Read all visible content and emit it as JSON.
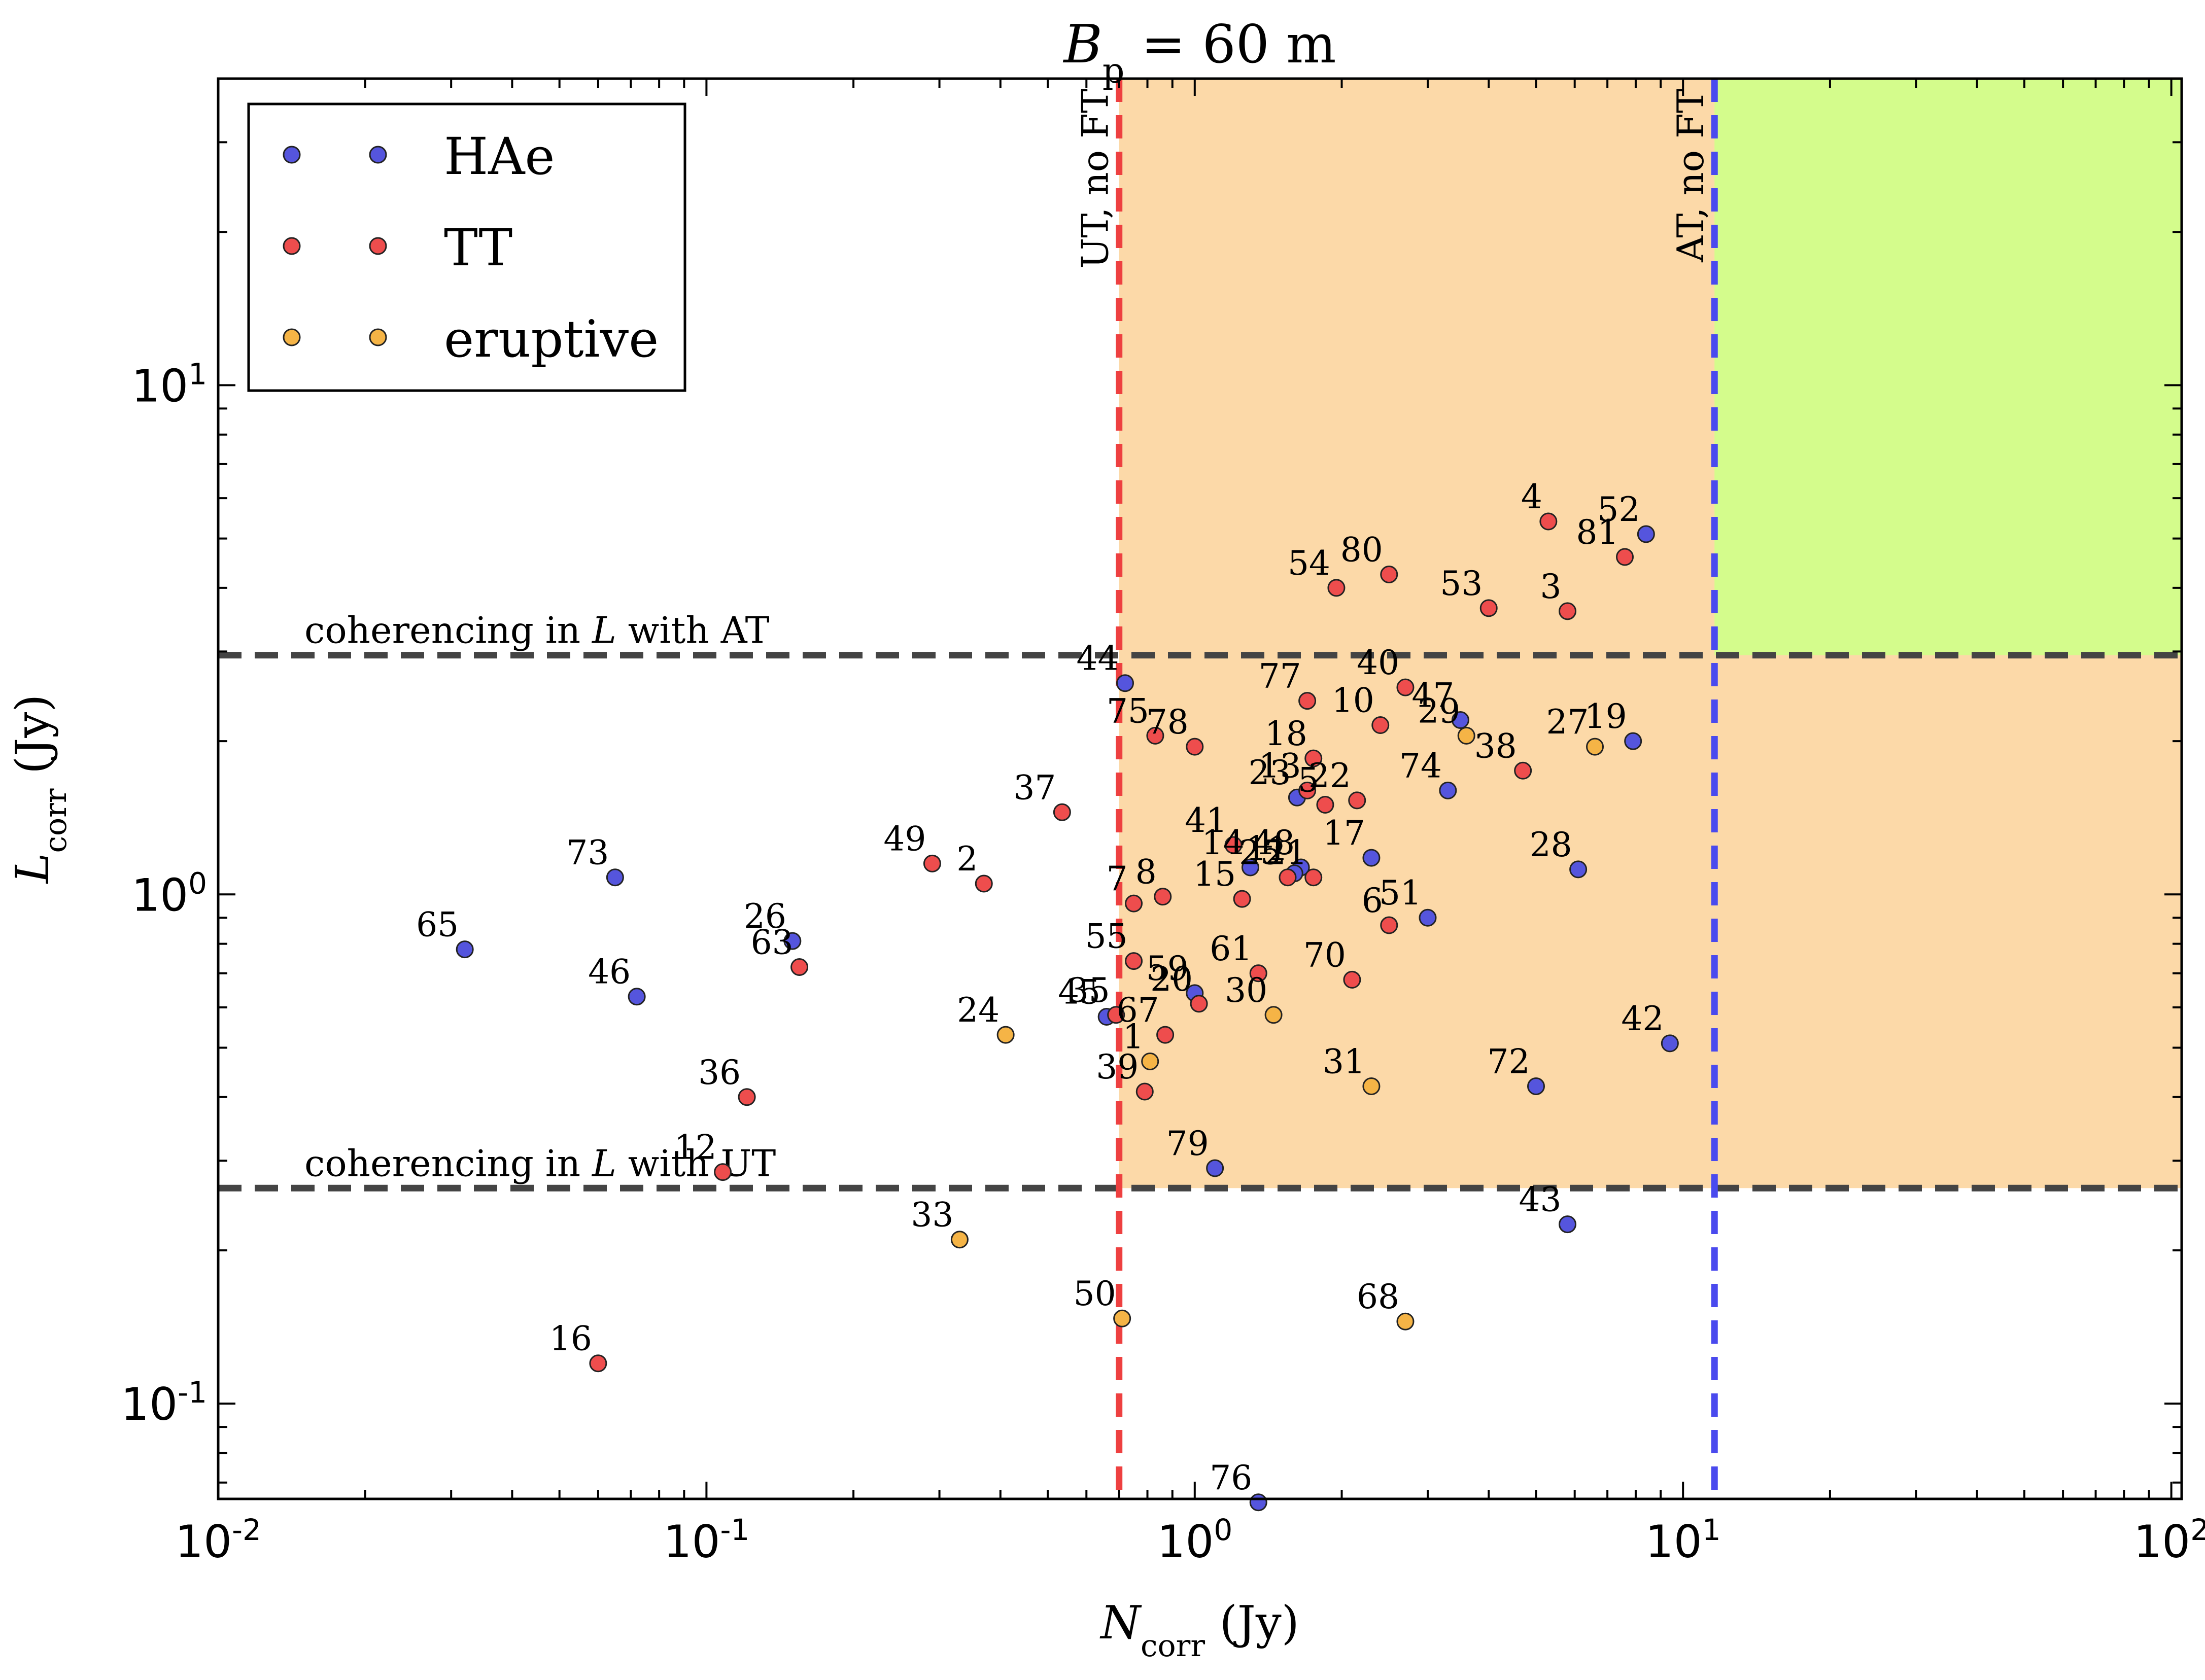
{
  "chart_data": {
    "type": "scatter",
    "title": "B_p = 60 m",
    "title_parts": {
      "base": "B",
      "sub": "p",
      "rest": " = 60 m"
    },
    "xlabel": "N_corr (Jy)",
    "xlabel_parts": {
      "base": "N",
      "sub": "corr",
      "rest": " (Jy)"
    },
    "ylabel": "L_corr (Jy)",
    "ylabel_parts": {
      "base": "L",
      "sub": "corr",
      "rest": " (Jy)"
    },
    "x_scale": "log",
    "y_scale": "log",
    "xlim": [
      0.01,
      105
    ],
    "ylim": [
      0.065,
      40
    ],
    "grid": false,
    "x_ticks": [
      {
        "value": 0.01,
        "base": "10",
        "exp": "-2"
      },
      {
        "value": 0.1,
        "base": "10",
        "exp": "-1"
      },
      {
        "value": 1,
        "base": "10",
        "exp": "0"
      },
      {
        "value": 10,
        "base": "10",
        "exp": "1"
      },
      {
        "value": 100,
        "base": "10",
        "exp": "2"
      }
    ],
    "y_ticks": [
      {
        "value": 0.1,
        "base": "10",
        "exp": "-1"
      },
      {
        "value": 1,
        "base": "10",
        "exp": "0"
      },
      {
        "value": 10,
        "base": "10",
        "exp": "1"
      }
    ],
    "legend": {
      "placement": "top-left",
      "entries": [
        {
          "label": "HAe",
          "color": "#5555dd"
        },
        {
          "label": "TT",
          "color": "#ee4d4d"
        },
        {
          "label": "eruptive",
          "color": "#f5b446"
        }
      ]
    },
    "colors": {
      "HAe": "#5555dd",
      "TT": "#ee4d4d",
      "eruptive": "#f5b446",
      "orange_region": "#fcd9a8",
      "green_region": "#d4fc8c",
      "ut_line": "#ee4040",
      "at_line": "#4a4aee",
      "coherencing_line": "#444444"
    },
    "thresholds": {
      "ut_no_ft": {
        "x": 0.7,
        "label": "UT, no FT"
      },
      "at_no_ft": {
        "x": 11.6,
        "label": "AT, no FT"
      },
      "coherencing_at": {
        "y": 2.95,
        "label_pre": "coherencing in ",
        "label_var": "L",
        "label_post": " with AT"
      },
      "coherencing_ut": {
        "y": 0.265,
        "label_pre": "coherencing in ",
        "label_var": "L",
        "label_post": " with UT"
      }
    },
    "series": [
      {
        "name": "HAe",
        "points": [
          {
            "id": "65",
            "x": 0.032,
            "y": 0.78
          },
          {
            "id": "73",
            "x": 0.065,
            "y": 1.08
          },
          {
            "id": "46",
            "x": 0.072,
            "y": 0.63
          },
          {
            "id": "26",
            "x": 0.15,
            "y": 0.81
          },
          {
            "id": "45",
            "x": 0.66,
            "y": 0.575
          },
          {
            "id": "44",
            "x": 0.72,
            "y": 2.6
          },
          {
            "id": "59",
            "x": 1.0,
            "y": 0.64
          },
          {
            "id": "79",
            "x": 1.1,
            "y": 0.29
          },
          {
            "id": "76",
            "x": 1.35,
            "y": 0.064
          },
          {
            "id": "14",
            "x": 1.3,
            "y": 1.13
          },
          {
            "id": "23",
            "x": 1.62,
            "y": 1.55
          },
          {
            "id": "48",
            "x": 1.65,
            "y": 1.13
          },
          {
            "id": "11",
            "x": 1.6,
            "y": 1.1
          },
          {
            "id": "17",
            "x": 2.3,
            "y": 1.18
          },
          {
            "id": "51",
            "x": 3.0,
            "y": 0.9
          },
          {
            "id": "74",
            "x": 3.3,
            "y": 1.6
          },
          {
            "id": "47",
            "x": 3.5,
            "y": 2.2
          },
          {
            "id": "72",
            "x": 5.0,
            "y": 0.42
          },
          {
            "id": "43",
            "x": 5.8,
            "y": 0.225
          },
          {
            "id": "28",
            "x": 6.1,
            "y": 1.12
          },
          {
            "id": "19",
            "x": 7.9,
            "y": 2.0
          },
          {
            "id": "52",
            "x": 8.4,
            "y": 5.1
          },
          {
            "id": "42",
            "x": 9.4,
            "y": 0.51
          }
        ]
      },
      {
        "name": "TT",
        "points": [
          {
            "id": "16",
            "x": 0.06,
            "y": 0.12
          },
          {
            "id": "12",
            "x": 0.108,
            "y": 0.285
          },
          {
            "id": "36",
            "x": 0.121,
            "y": 0.4
          },
          {
            "id": "63",
            "x": 0.155,
            "y": 0.72
          },
          {
            "id": "49",
            "x": 0.29,
            "y": 1.15
          },
          {
            "id": "2",
            "x": 0.37,
            "y": 1.05
          },
          {
            "id": "37",
            "x": 0.535,
            "y": 1.45
          },
          {
            "id": "35",
            "x": 0.69,
            "y": 0.58
          },
          {
            "id": "75",
            "x": 0.83,
            "y": 2.05
          },
          {
            "id": "67",
            "x": 0.87,
            "y": 0.53
          },
          {
            "id": "7",
            "x": 0.75,
            "y": 0.96
          },
          {
            "id": "55",
            "x": 0.75,
            "y": 0.74
          },
          {
            "id": "8",
            "x": 0.86,
            "y": 0.99
          },
          {
            "id": "39",
            "x": 0.79,
            "y": 0.41
          },
          {
            "id": "78",
            "x": 1.0,
            "y": 1.95
          },
          {
            "id": "20",
            "x": 1.02,
            "y": 0.61
          },
          {
            "id": "41",
            "x": 1.2,
            "y": 1.25
          },
          {
            "id": "15",
            "x": 1.25,
            "y": 0.98
          },
          {
            "id": "61",
            "x": 1.35,
            "y": 0.7
          },
          {
            "id": "25",
            "x": 1.55,
            "y": 1.08
          },
          {
            "id": "77",
            "x": 1.7,
            "y": 2.4
          },
          {
            "id": "18",
            "x": 1.75,
            "y": 1.85
          },
          {
            "id": "13",
            "x": 1.7,
            "y": 1.6
          },
          {
            "id": "22",
            "x": 2.15,
            "y": 1.53
          },
          {
            "id": "21",
            "x": 1.75,
            "y": 1.08
          },
          {
            "id": "5",
            "x": 1.85,
            "y": 1.5
          },
          {
            "id": "70",
            "x": 2.1,
            "y": 0.68
          },
          {
            "id": "10",
            "x": 2.4,
            "y": 2.15
          },
          {
            "id": "6",
            "x": 2.5,
            "y": 0.87
          },
          {
            "id": "54",
            "x": 1.95,
            "y": 4.0
          },
          {
            "id": "80",
            "x": 2.5,
            "y": 4.25
          },
          {
            "id": "40",
            "x": 2.7,
            "y": 2.55
          },
          {
            "id": "53",
            "x": 4.0,
            "y": 3.65
          },
          {
            "id": "38",
            "x": 4.7,
            "y": 1.75
          },
          {
            "id": "4",
            "x": 5.3,
            "y": 5.4
          },
          {
            "id": "3",
            "x": 5.8,
            "y": 3.6
          },
          {
            "id": "81",
            "x": 7.6,
            "y": 4.6
          }
        ]
      },
      {
        "name": "eruptive",
        "points": [
          {
            "id": "33",
            "x": 0.33,
            "y": 0.21
          },
          {
            "id": "24",
            "x": 0.41,
            "y": 0.53
          },
          {
            "id": "50",
            "x": 0.71,
            "y": 0.147
          },
          {
            "id": "1",
            "x": 0.81,
            "y": 0.47
          },
          {
            "id": "30",
            "x": 1.45,
            "y": 0.58
          },
          {
            "id": "31",
            "x": 2.3,
            "y": 0.42
          },
          {
            "id": "68",
            "x": 2.7,
            "y": 0.145
          },
          {
            "id": "29",
            "x": 3.6,
            "y": 2.05
          },
          {
            "id": "27",
            "x": 6.6,
            "y": 1.95
          }
        ]
      }
    ]
  }
}
